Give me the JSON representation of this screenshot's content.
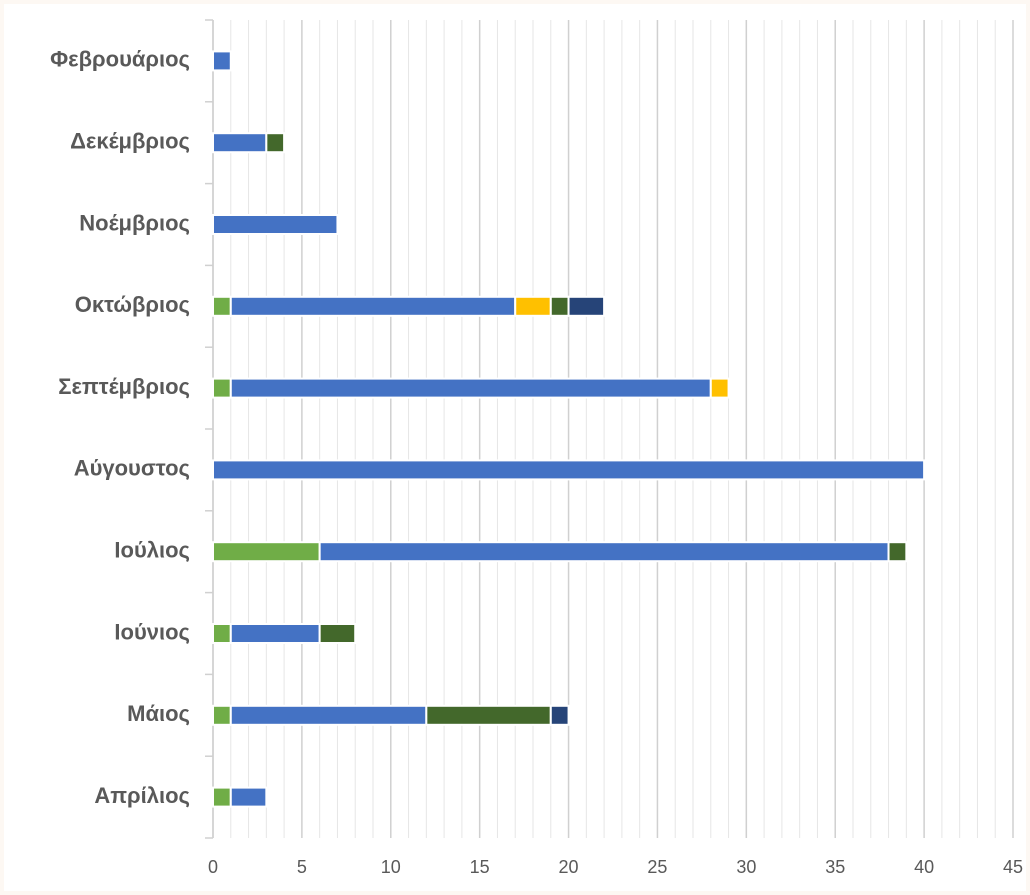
{
  "chart_data": {
    "type": "stacked-barh",
    "categories": [
      "Απρίλιος",
      "Μάιος",
      "Ιούνιος",
      "Ιούλιος",
      "Αύγουστος",
      "Σεπτέμβριος",
      "Οκτώβριος",
      "Νοέμβριος",
      "Δεκέμβριος",
      "Φεβρουάριος"
    ],
    "series": [
      {
        "color": "#70ad47",
        "values": [
          1,
          1,
          1,
          6,
          0,
          1,
          1,
          0,
          0,
          0
        ]
      },
      {
        "color": "#4472c4",
        "values": [
          2,
          11,
          5,
          32,
          40,
          27,
          16,
          7,
          3,
          1
        ]
      },
      {
        "color": "#ffc000",
        "values": [
          0,
          0,
          0,
          0,
          0,
          1,
          2,
          0,
          0,
          0
        ]
      },
      {
        "color": "#43682b",
        "values": [
          0,
          7,
          2,
          1,
          0,
          0,
          1,
          0,
          1,
          0
        ]
      },
      {
        "color": "#264478",
        "values": [
          0,
          1,
          0,
          0,
          0,
          0,
          2,
          0,
          0,
          0
        ]
      }
    ],
    "xlim": [
      0,
      45
    ],
    "xticks": [
      0,
      5,
      10,
      15,
      20,
      25,
      30,
      35,
      40,
      45
    ],
    "grid": true,
    "minor_grid": true
  }
}
